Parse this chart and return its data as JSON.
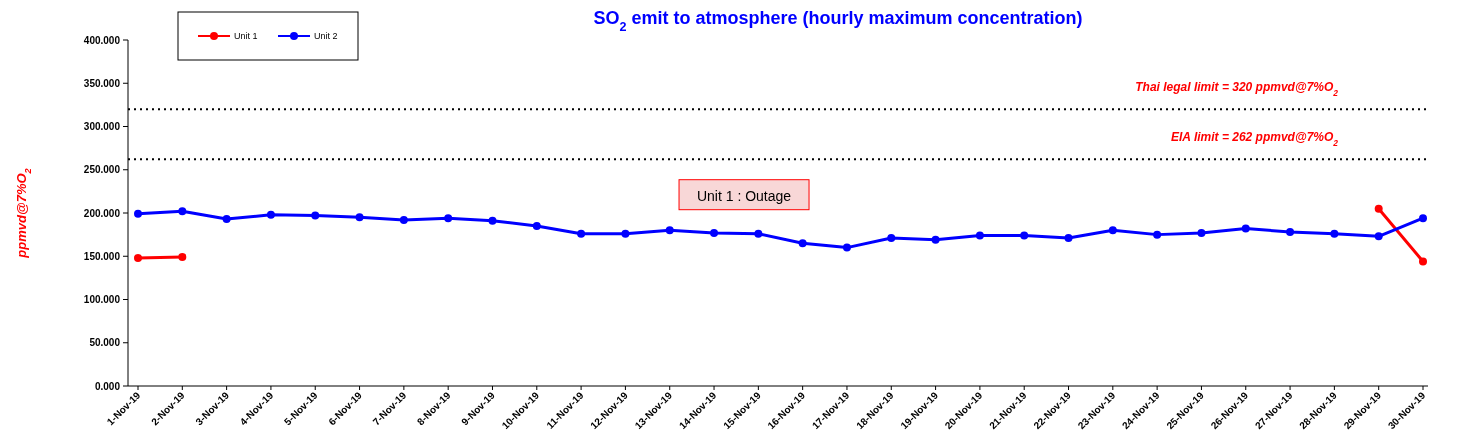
{
  "chart_data": {
    "type": "line",
    "title": "SO$_{2}$ emit to atmosphere (hourly maximum concentration)",
    "ylabel": "ppmvd@7%O$_{2}$",
    "categories": [
      "1-Nov-19",
      "2-Nov-19",
      "3-Nov-19",
      "4-Nov-19",
      "5-Nov-19",
      "6-Nov-19",
      "7-Nov-19",
      "8-Nov-19",
      "9-Nov-19",
      "10-Nov-19",
      "11-Nov-19",
      "12-Nov-19",
      "13-Nov-19",
      "14-Nov-19",
      "15-Nov-19",
      "16-Nov-19",
      "17-Nov-19",
      "18-Nov-19",
      "19-Nov-19",
      "20-Nov-19",
      "21-Nov-19",
      "22-Nov-19",
      "23-Nov-19",
      "24-Nov-19",
      "25-Nov-19",
      "26-Nov-19",
      "27-Nov-19",
      "28-Nov-19",
      "29-Nov-19",
      "30-Nov-19"
    ],
    "series": [
      {
        "name": "Unit 1",
        "color": "#ff0000",
        "values": [
          148,
          149,
          null,
          null,
          null,
          null,
          null,
          null,
          null,
          null,
          null,
          null,
          null,
          null,
          null,
          null,
          null,
          null,
          null,
          null,
          null,
          null,
          null,
          null,
          null,
          null,
          null,
          null,
          205,
          144
        ]
      },
      {
        "name": "Unit 2",
        "color": "#0000ff",
        "values": [
          199,
          202,
          193,
          198,
          197,
          195,
          192,
          194,
          191,
          185,
          176,
          176,
          180,
          177,
          176,
          165,
          160,
          171,
          169,
          174,
          174,
          171,
          180,
          175,
          177,
          182,
          178,
          176,
          173,
          194
        ]
      }
    ],
    "ylim": [
      0,
      400
    ],
    "yticks": [
      {
        "value": 0,
        "label": "0.000"
      },
      {
        "value": 50,
        "label": "50.000"
      },
      {
        "value": 100,
        "label": "100.000"
      },
      {
        "value": 150,
        "label": "150.000"
      },
      {
        "value": 200,
        "label": "200.000"
      },
      {
        "value": 250,
        "label": "250.000"
      },
      {
        "value": 300,
        "label": "300.000"
      },
      {
        "value": 350,
        "label": "350.000"
      },
      {
        "value": 400,
        "label": "400.000"
      }
    ],
    "ref_lines": [
      {
        "axis": "y",
        "value": 320,
        "label": "Thai legal limit  = 320 ppmvd@7%O$_{2}$",
        "color": "#000000",
        "line_style": "dotted"
      },
      {
        "axis": "y",
        "value": 262,
        "label": "EIA limit  = 262 ppmvd@7%O$_{2}$",
        "color": "#000000",
        "line_style": "dotted"
      }
    ],
    "annotations": [
      "Unit 1 : Outage"
    ],
    "grid": false,
    "legend": "top left",
    "marker": "circle",
    "line_style": "solid"
  }
}
